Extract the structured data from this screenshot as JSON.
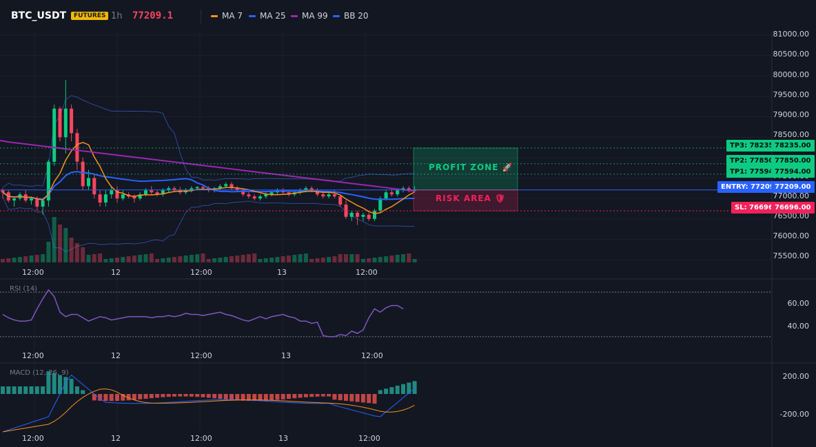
{
  "header": {
    "symbol": "BTC_USDT",
    "badge": "FUTURES",
    "timeframe": "1h",
    "last_price": "77209.1",
    "legend": [
      {
        "label": "MA 7",
        "color": "#f7931a"
      },
      {
        "label": "MA 25",
        "color": "#2962ff"
      },
      {
        "label": "MA 99",
        "color": "#9c27b0"
      },
      {
        "label": "BB 20",
        "color": "#2962ff"
      }
    ]
  },
  "price_axis": {
    "ticks": [
      "81000.00",
      "80500.00",
      "80000.00",
      "79500.00",
      "79000.00",
      "78500.00",
      "78000.00",
      "77500.00",
      "77000.00",
      "76500.00",
      "76000.00",
      "75500.00"
    ]
  },
  "time_axis": {
    "labels": [
      "12:00",
      "12",
      "12:00",
      "13",
      "12:00"
    ]
  },
  "levels": {
    "tp3": {
      "label": "TP3: 78235",
      "value": "78235.00",
      "price": 78235
    },
    "tp2": {
      "label": "TP2: 77850",
      "value": "77850.00",
      "price": 77850
    },
    "tp1": {
      "label": "TP1: 77594",
      "value": "77594.00",
      "price": 77594
    },
    "entry": {
      "label": "ENTRY: 77209",
      "value": "77209.00",
      "price": 77209
    },
    "sl": {
      "label": "SL: 76696",
      "value": "76696.00",
      "price": 76696
    }
  },
  "zones": {
    "profit": "PROFIT ZONE 🚀",
    "risk": "RISK AREA 🛡"
  },
  "rsi": {
    "title": "RSI (14)",
    "ticks": [
      "60.00",
      "40.00"
    ],
    "values": [
      50,
      47,
      45,
      44,
      44,
      45,
      55,
      64,
      72,
      66,
      52,
      48,
      50,
      50,
      47,
      44,
      46,
      48,
      47,
      45,
      46,
      47,
      48,
      48,
      48,
      48,
      47,
      48,
      48,
      49,
      48,
      49,
      51,
      50,
      50,
      49,
      50,
      51,
      52,
      50,
      49,
      47,
      45,
      44,
      46,
      48,
      46,
      48,
      49,
      50,
      48,
      47,
      44,
      44,
      42,
      43,
      31,
      30,
      30,
      32,
      31,
      35,
      33,
      36,
      47,
      55,
      52,
      56,
      58,
      58,
      55
    ]
  },
  "macd": {
    "title": "MACD (12, 26, 9)",
    "ticks": [
      "200.00",
      "-200.00"
    ]
  },
  "chart_data": {
    "type": "candlestick",
    "ylim": [
      75400,
      81050
    ],
    "candles": [
      [
        77200,
        77250,
        77000,
        77150
      ],
      [
        77150,
        77200,
        76900,
        76950
      ],
      [
        76950,
        77050,
        76800,
        77000
      ],
      [
        77000,
        77150,
        76950,
        77100
      ],
      [
        77100,
        77200,
        76900,
        76950
      ],
      [
        76950,
        77050,
        76850,
        77000
      ],
      [
        77000,
        77050,
        76700,
        76800
      ],
      [
        76800,
        77000,
        76600,
        76950
      ],
      [
        76950,
        77950,
        76800,
        77900
      ],
      [
        77900,
        79300,
        77800,
        79200
      ],
      [
        79200,
        79250,
        78400,
        78500
      ],
      [
        78500,
        79900,
        78100,
        79200
      ],
      [
        79200,
        79300,
        78400,
        78600
      ],
      [
        78600,
        78700,
        77700,
        77900
      ],
      [
        77900,
        78000,
        77200,
        77300
      ],
      [
        77300,
        77700,
        77200,
        77500
      ],
      [
        77500,
        77600,
        77000,
        77100
      ],
      [
        77100,
        77200,
        76800,
        76900
      ],
      [
        76900,
        77200,
        76800,
        77100
      ],
      [
        77100,
        77300,
        77000,
        77200
      ],
      [
        77200,
        77300,
        76900,
        77000
      ],
      [
        77000,
        77200,
        76950,
        77100
      ],
      [
        77100,
        77150,
        77000,
        77050
      ],
      [
        77050,
        77100,
        76900,
        77000
      ],
      [
        77000,
        77150,
        76950,
        77100
      ],
      [
        77100,
        77250,
        77050,
        77200
      ],
      [
        77200,
        77300,
        77100,
        77150
      ],
      [
        77150,
        77200,
        77050,
        77100
      ],
      [
        77100,
        77250,
        77050,
        77200
      ],
      [
        77200,
        77300,
        77150,
        77250
      ],
      [
        77250,
        77300,
        77150,
        77200
      ],
      [
        77200,
        77280,
        77100,
        77150
      ],
      [
        77150,
        77250,
        77100,
        77200
      ],
      [
        77200,
        77300,
        77150,
        77250
      ],
      [
        77250,
        77300,
        77200,
        77280
      ],
      [
        77280,
        77320,
        77200,
        77250
      ],
      [
        77250,
        77300,
        77150,
        77200
      ],
      [
        77200,
        77280,
        77150,
        77250
      ],
      [
        77250,
        77350,
        77200,
        77300
      ],
      [
        77300,
        77400,
        77250,
        77350
      ],
      [
        77350,
        77400,
        77200,
        77250
      ],
      [
        77250,
        77300,
        77150,
        77200
      ],
      [
        77200,
        77250,
        77050,
        77100
      ],
      [
        77100,
        77150,
        77000,
        77050
      ],
      [
        77050,
        77100,
        76950,
        77000
      ],
      [
        77000,
        77100,
        76950,
        77050
      ],
      [
        77050,
        77150,
        77000,
        77100
      ],
      [
        77100,
        77200,
        77050,
        77150
      ],
      [
        77150,
        77250,
        77100,
        77200
      ],
      [
        77200,
        77250,
        77100,
        77150
      ],
      [
        77150,
        77200,
        77050,
        77100
      ],
      [
        77100,
        77200,
        77050,
        77150
      ],
      [
        77150,
        77250,
        77100,
        77200
      ],
      [
        77200,
        77300,
        77150,
        77250
      ],
      [
        77250,
        77300,
        77150,
        77200
      ],
      [
        77200,
        77250,
        77050,
        77100
      ],
      [
        77100,
        77150,
        77000,
        77050
      ],
      [
        77050,
        77150,
        77000,
        77100
      ],
      [
        77100,
        77200,
        77000,
        77050
      ],
      [
        77050,
        77100,
        76800,
        76850
      ],
      [
        76850,
        76950,
        76500,
        76550
      ],
      [
        76550,
        76700,
        76450,
        76650
      ],
      [
        76650,
        76700,
        76350,
        76550
      ],
      [
        76550,
        76650,
        76450,
        76600
      ],
      [
        76600,
        76650,
        76450,
        76500
      ],
      [
        76500,
        76750,
        76450,
        76700
      ],
      [
        76700,
        77050,
        76650,
        77000
      ],
      [
        77000,
        77200,
        76950,
        77150
      ],
      [
        77150,
        77250,
        77050,
        77100
      ],
      [
        77100,
        77250,
        77050,
        77200
      ],
      [
        77200,
        77300,
        77150,
        77250
      ],
      [
        77250,
        77300,
        77150,
        77200
      ],
      [
        77200,
        77300,
        77150,
        77209
      ]
    ]
  }
}
